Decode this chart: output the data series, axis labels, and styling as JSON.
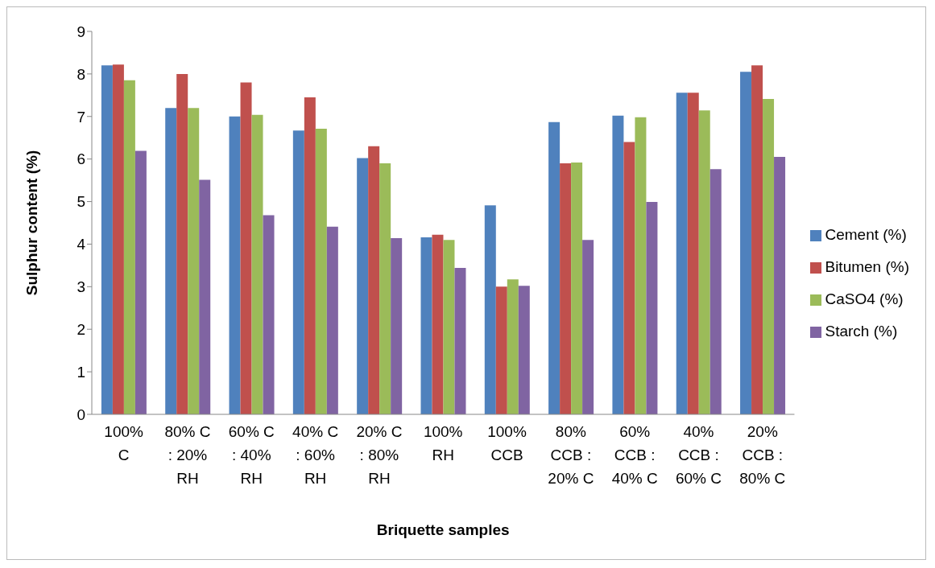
{
  "chart_data": {
    "type": "bar",
    "xlabel": "Briquette samples",
    "ylabel": "Sulphur content (%)",
    "categories": [
      "100% C",
      "80% C : 20% RH",
      "60% C : 40% RH",
      "40% C : 60% RH",
      "20% C : 80% RH",
      "100% RH",
      "100% CCB",
      "80% CCB : 20% C",
      "60% CCB : 40% C",
      "40% CCB : 60% C",
      "20% CCB : 80% C"
    ],
    "series": [
      {
        "name": "Cement (%)",
        "color": "#4f81bd",
        "values": [
          8.2,
          7.2,
          7.0,
          6.67,
          6.02,
          4.16,
          4.91,
          6.87,
          7.02,
          7.56,
          8.05
        ]
      },
      {
        "name": "Bitumen (%)",
        "color": "#c0504d",
        "values": [
          8.22,
          8.0,
          7.8,
          7.45,
          6.3,
          4.22,
          3.0,
          5.9,
          6.4,
          7.56,
          8.2
        ]
      },
      {
        "name": "CaSO4 (%)",
        "color": "#9bbb59",
        "values": [
          7.85,
          7.2,
          7.04,
          6.71,
          5.9,
          4.1,
          3.17,
          5.92,
          6.98,
          7.14,
          7.41
        ]
      },
      {
        "name": "Starch (%)",
        "color": "#8064a2",
        "values": [
          6.19,
          5.51,
          4.68,
          4.41,
          4.14,
          3.44,
          3.02,
          4.1,
          4.99,
          5.76,
          6.05
        ]
      }
    ],
    "ylim": [
      0,
      9
    ],
    "yticks": [
      0,
      1,
      2,
      3,
      4,
      5,
      6,
      7,
      8,
      9
    ],
    "grid": false,
    "legend": "right"
  }
}
